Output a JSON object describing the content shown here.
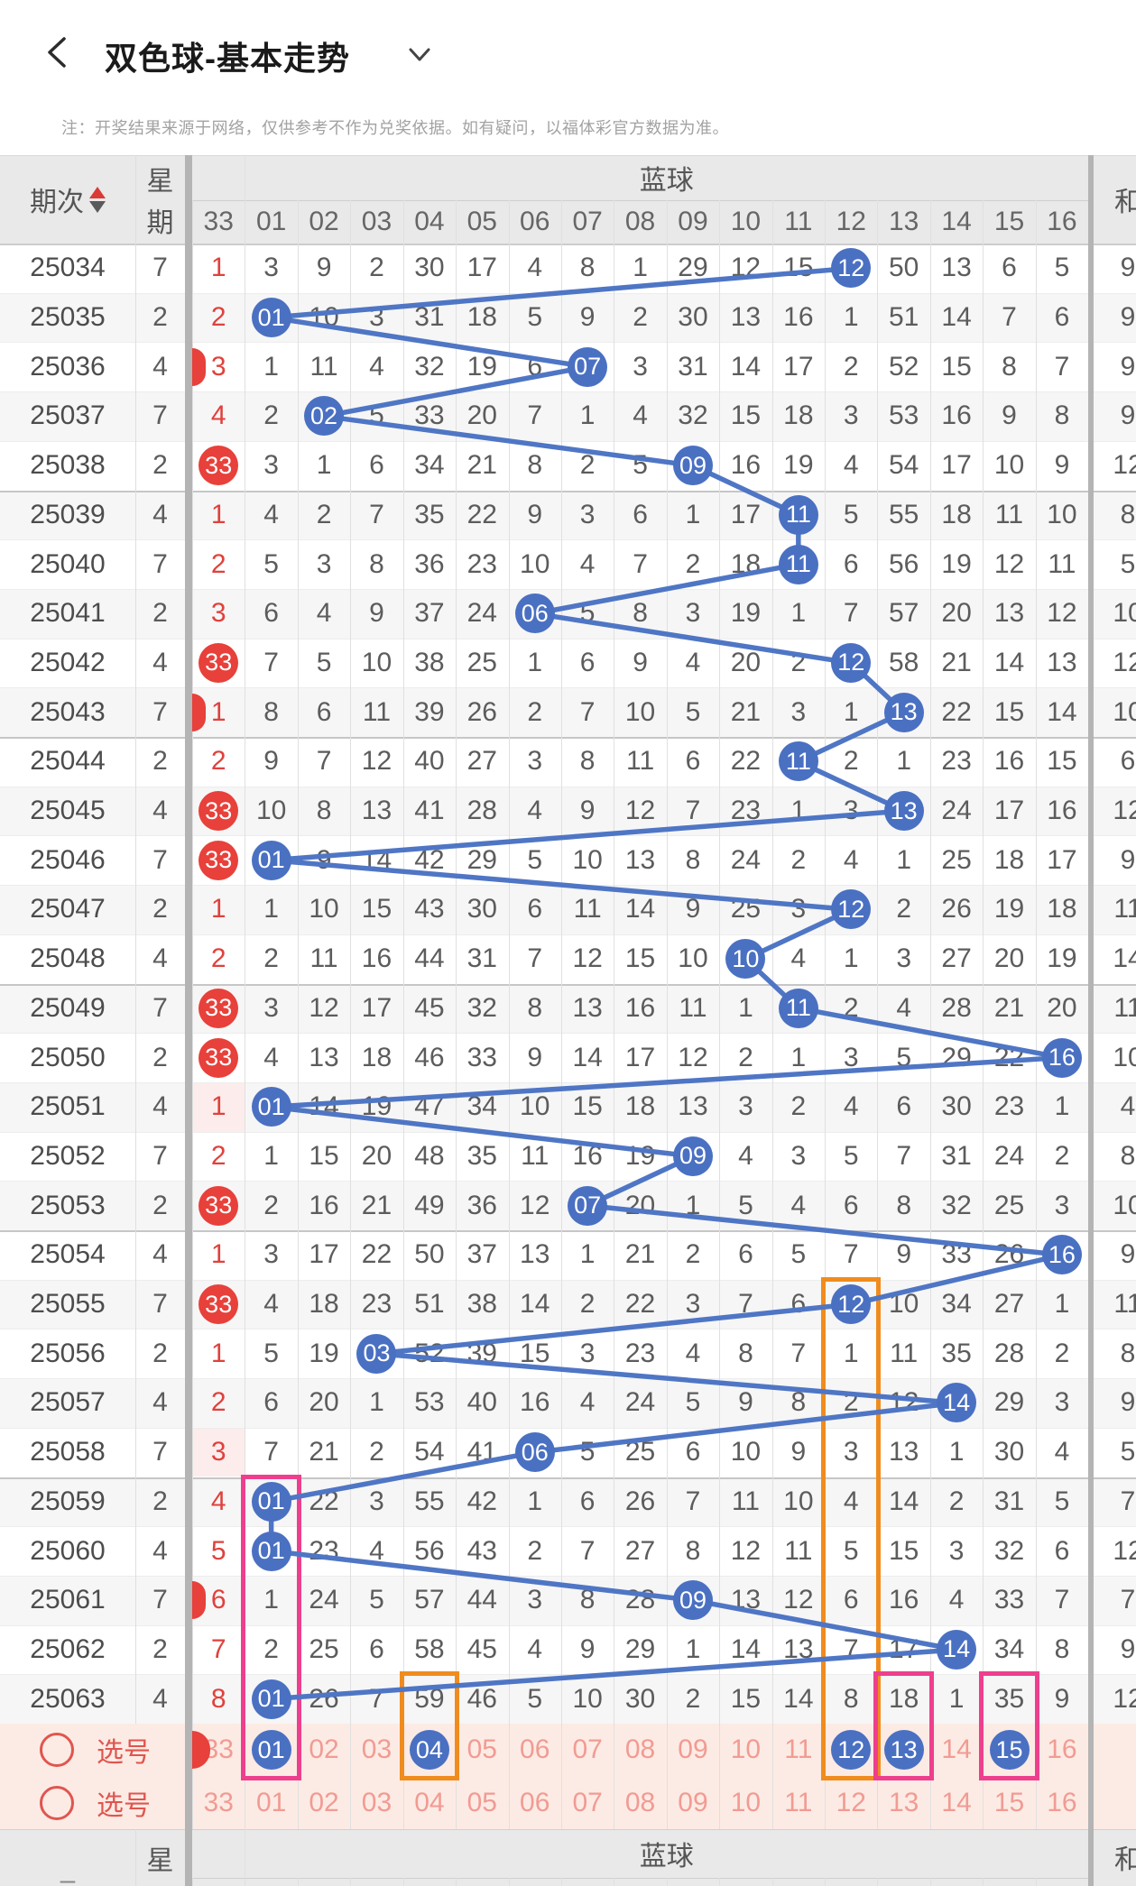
{
  "app_bar": {
    "title": "双色球-基本走势"
  },
  "notice": "注：开奖结果来源于网络，仅供参考不作为兑奖依据。如有疑问，以福体彩官方数据为准。",
  "table_header": {
    "period": "期次",
    "week_chars": [
      "星",
      "期"
    ],
    "blue_group": "蓝球",
    "sum": "和",
    "number_columns": [
      "33",
      "01",
      "02",
      "03",
      "04",
      "05",
      "06",
      "07",
      "08",
      "09",
      "10",
      "11",
      "12",
      "13",
      "14",
      "15",
      "16"
    ],
    "footer_dash": "–"
  },
  "rows": [
    {
      "period": "25034",
      "week": "7",
      "red33": "1",
      "red33_drawn": false,
      "red33_tint": false,
      "red_peek": false,
      "cells": [
        "3",
        "9",
        "2",
        "30",
        "17",
        "4",
        "8",
        "1",
        "29",
        "12",
        "15",
        "12",
        "50",
        "13",
        "6",
        "5"
      ],
      "drawn_blue": 12,
      "sum": "9"
    },
    {
      "period": "25035",
      "week": "2",
      "red33": "2",
      "red33_drawn": false,
      "red33_tint": false,
      "red_peek": false,
      "cells": [
        "01",
        "10",
        "3",
        "31",
        "18",
        "5",
        "9",
        "2",
        "30",
        "13",
        "16",
        "1",
        "51",
        "14",
        "7",
        "6"
      ],
      "drawn_blue": 1,
      "sum": "9"
    },
    {
      "period": "25036",
      "week": "4",
      "red33": "3",
      "red33_drawn": false,
      "red33_tint": false,
      "red_peek": true,
      "cells": [
        "1",
        "11",
        "4",
        "32",
        "19",
        "6",
        "07",
        "3",
        "31",
        "14",
        "17",
        "2",
        "52",
        "15",
        "8",
        "7"
      ],
      "drawn_blue": 7,
      "sum": "9"
    },
    {
      "period": "25037",
      "week": "7",
      "red33": "4",
      "red33_drawn": false,
      "red33_tint": false,
      "red_peek": false,
      "cells": [
        "2",
        "02",
        "5",
        "33",
        "20",
        "7",
        "1",
        "4",
        "32",
        "15",
        "18",
        "3",
        "53",
        "16",
        "9",
        "8"
      ],
      "drawn_blue": 2,
      "sum": "9"
    },
    {
      "period": "25038",
      "week": "2",
      "red33": "33",
      "red33_drawn": true,
      "red33_tint": false,
      "red_peek": false,
      "cells": [
        "3",
        "1",
        "6",
        "34",
        "21",
        "8",
        "2",
        "5",
        "09",
        "16",
        "19",
        "4",
        "54",
        "17",
        "10",
        "9"
      ],
      "drawn_blue": 9,
      "sum": "12"
    },
    {
      "period": "25039",
      "week": "4",
      "red33": "1",
      "red33_drawn": false,
      "red33_tint": false,
      "red_peek": false,
      "cells": [
        "4",
        "2",
        "7",
        "35",
        "22",
        "9",
        "3",
        "6",
        "1",
        "17",
        "11",
        "5",
        "55",
        "18",
        "11",
        "10"
      ],
      "drawn_blue": 11,
      "sum": "8"
    },
    {
      "period": "25040",
      "week": "7",
      "red33": "2",
      "red33_drawn": false,
      "red33_tint": false,
      "red_peek": false,
      "cells": [
        "5",
        "3",
        "8",
        "36",
        "23",
        "10",
        "4",
        "7",
        "2",
        "18",
        "11",
        "6",
        "56",
        "19",
        "12",
        "11"
      ],
      "drawn_blue": 11,
      "sum": "5"
    },
    {
      "period": "25041",
      "week": "2",
      "red33": "3",
      "red33_drawn": false,
      "red33_tint": false,
      "red_peek": false,
      "cells": [
        "6",
        "4",
        "9",
        "37",
        "24",
        "06",
        "5",
        "8",
        "3",
        "19",
        "1",
        "7",
        "57",
        "20",
        "13",
        "12"
      ],
      "drawn_blue": 6,
      "sum": "10"
    },
    {
      "period": "25042",
      "week": "4",
      "red33": "33",
      "red33_drawn": true,
      "red33_tint": false,
      "red_peek": false,
      "cells": [
        "7",
        "5",
        "10",
        "38",
        "25",
        "1",
        "6",
        "9",
        "4",
        "20",
        "2",
        "12",
        "58",
        "21",
        "14",
        "13"
      ],
      "drawn_blue": 12,
      "sum": "12"
    },
    {
      "period": "25043",
      "week": "7",
      "red33": "1",
      "red33_drawn": false,
      "red33_tint": false,
      "red_peek": true,
      "cells": [
        "8",
        "6",
        "11",
        "39",
        "26",
        "2",
        "7",
        "10",
        "5",
        "21",
        "3",
        "1",
        "13",
        "22",
        "15",
        "14"
      ],
      "drawn_blue": 13,
      "sum": "10"
    },
    {
      "period": "25044",
      "week": "2",
      "red33": "2",
      "red33_drawn": false,
      "red33_tint": false,
      "red_peek": false,
      "cells": [
        "9",
        "7",
        "12",
        "40",
        "27",
        "3",
        "8",
        "11",
        "6",
        "22",
        "11",
        "2",
        "1",
        "23",
        "16",
        "15"
      ],
      "drawn_blue": 11,
      "sum": "6"
    },
    {
      "period": "25045",
      "week": "4",
      "red33": "33",
      "red33_drawn": true,
      "red33_tint": false,
      "red_peek": false,
      "cells": [
        "10",
        "8",
        "13",
        "41",
        "28",
        "4",
        "9",
        "12",
        "7",
        "23",
        "1",
        "3",
        "13",
        "24",
        "17",
        "16"
      ],
      "drawn_blue": 13,
      "sum": "12"
    },
    {
      "period": "25046",
      "week": "7",
      "red33": "33",
      "red33_drawn": true,
      "red33_tint": false,
      "red_peek": false,
      "cells": [
        "01",
        "9",
        "14",
        "42",
        "29",
        "5",
        "10",
        "13",
        "8",
        "24",
        "2",
        "4",
        "1",
        "25",
        "18",
        "17"
      ],
      "drawn_blue": 1,
      "sum": "9"
    },
    {
      "period": "25047",
      "week": "2",
      "red33": "1",
      "red33_drawn": false,
      "red33_tint": false,
      "red_peek": false,
      "cells": [
        "1",
        "10",
        "15",
        "43",
        "30",
        "6",
        "11",
        "14",
        "9",
        "25",
        "3",
        "12",
        "2",
        "26",
        "19",
        "18"
      ],
      "drawn_blue": 12,
      "sum": "11"
    },
    {
      "period": "25048",
      "week": "4",
      "red33": "2",
      "red33_drawn": false,
      "red33_tint": false,
      "red_peek": false,
      "cells": [
        "2",
        "11",
        "16",
        "44",
        "31",
        "7",
        "12",
        "15",
        "10",
        "10",
        "4",
        "1",
        "3",
        "27",
        "20",
        "19"
      ],
      "drawn_blue": 10,
      "sum": "14"
    },
    {
      "period": "25049",
      "week": "7",
      "red33": "33",
      "red33_drawn": true,
      "red33_tint": false,
      "red_peek": false,
      "cells": [
        "3",
        "12",
        "17",
        "45",
        "32",
        "8",
        "13",
        "16",
        "11",
        "1",
        "11",
        "2",
        "4",
        "28",
        "21",
        "20"
      ],
      "drawn_blue": 11,
      "sum": "11"
    },
    {
      "period": "25050",
      "week": "2",
      "red33": "33",
      "red33_drawn": true,
      "red33_tint": false,
      "red_peek": false,
      "cells": [
        "4",
        "13",
        "18",
        "46",
        "33",
        "9",
        "14",
        "17",
        "12",
        "2",
        "1",
        "3",
        "5",
        "29",
        "22",
        "16"
      ],
      "drawn_blue": 16,
      "sum": "10"
    },
    {
      "period": "25051",
      "week": "4",
      "red33": "1",
      "red33_drawn": false,
      "red33_tint": true,
      "red_peek": false,
      "cells": [
        "01",
        "14",
        "19",
        "47",
        "34",
        "10",
        "15",
        "18",
        "13",
        "3",
        "2",
        "4",
        "6",
        "30",
        "23",
        "1"
      ],
      "drawn_blue": 1,
      "sum": "4"
    },
    {
      "period": "25052",
      "week": "7",
      "red33": "2",
      "red33_drawn": false,
      "red33_tint": false,
      "red_peek": false,
      "cells": [
        "1",
        "15",
        "20",
        "48",
        "35",
        "11",
        "16",
        "19",
        "09",
        "4",
        "3",
        "5",
        "7",
        "31",
        "24",
        "2"
      ],
      "drawn_blue": 9,
      "sum": "8"
    },
    {
      "period": "25053",
      "week": "2",
      "red33": "33",
      "red33_drawn": true,
      "red33_tint": false,
      "red_peek": false,
      "cells": [
        "2",
        "16",
        "21",
        "49",
        "36",
        "12",
        "07",
        "20",
        "1",
        "5",
        "4",
        "6",
        "8",
        "32",
        "25",
        "3"
      ],
      "drawn_blue": 7,
      "sum": "10"
    },
    {
      "period": "25054",
      "week": "4",
      "red33": "1",
      "red33_drawn": false,
      "red33_tint": false,
      "red_peek": false,
      "cells": [
        "3",
        "17",
        "22",
        "50",
        "37",
        "13",
        "1",
        "21",
        "2",
        "6",
        "5",
        "7",
        "9",
        "33",
        "26",
        "16"
      ],
      "drawn_blue": 16,
      "sum": "9"
    },
    {
      "period": "25055",
      "week": "7",
      "red33": "33",
      "red33_drawn": true,
      "red33_tint": false,
      "red_peek": false,
      "cells": [
        "4",
        "18",
        "23",
        "51",
        "38",
        "14",
        "2",
        "22",
        "3",
        "7",
        "6",
        "12",
        "10",
        "34",
        "27",
        "1"
      ],
      "drawn_blue": 12,
      "sum": "11"
    },
    {
      "period": "25056",
      "week": "2",
      "red33": "1",
      "red33_drawn": false,
      "red33_tint": false,
      "red_peek": false,
      "cells": [
        "5",
        "19",
        "03",
        "52",
        "39",
        "15",
        "3",
        "23",
        "4",
        "8",
        "7",
        "1",
        "11",
        "35",
        "28",
        "2"
      ],
      "drawn_blue": 3,
      "sum": "8"
    },
    {
      "period": "25057",
      "week": "4",
      "red33": "2",
      "red33_drawn": false,
      "red33_tint": false,
      "red_peek": false,
      "cells": [
        "6",
        "20",
        "1",
        "53",
        "40",
        "16",
        "4",
        "24",
        "5",
        "9",
        "8",
        "2",
        "12",
        "14",
        "29",
        "3"
      ],
      "drawn_blue": 14,
      "sum": "9"
    },
    {
      "period": "25058",
      "week": "7",
      "red33": "3",
      "red33_drawn": false,
      "red33_tint": true,
      "red_peek": false,
      "cells": [
        "7",
        "21",
        "2",
        "54",
        "41",
        "06",
        "5",
        "25",
        "6",
        "10",
        "9",
        "3",
        "13",
        "1",
        "30",
        "4"
      ],
      "drawn_blue": 6,
      "sum": "5"
    },
    {
      "period": "25059",
      "week": "2",
      "red33": "4",
      "red33_drawn": false,
      "red33_tint": false,
      "red_peek": false,
      "cells": [
        "01",
        "22",
        "3",
        "55",
        "42",
        "1",
        "6",
        "26",
        "7",
        "11",
        "10",
        "4",
        "14",
        "2",
        "31",
        "5"
      ],
      "drawn_blue": 1,
      "sum": "7"
    },
    {
      "period": "25060",
      "week": "4",
      "red33": "5",
      "red33_drawn": false,
      "red33_tint": false,
      "red_peek": false,
      "cells": [
        "01",
        "23",
        "4",
        "56",
        "43",
        "2",
        "7",
        "27",
        "8",
        "12",
        "11",
        "5",
        "15",
        "3",
        "32",
        "6"
      ],
      "drawn_blue": 1,
      "sum": "12"
    },
    {
      "period": "25061",
      "week": "7",
      "red33": "6",
      "red33_drawn": false,
      "red33_tint": false,
      "red_peek": true,
      "cells": [
        "1",
        "24",
        "5",
        "57",
        "44",
        "3",
        "8",
        "28",
        "09",
        "13",
        "12",
        "6",
        "16",
        "4",
        "33",
        "7"
      ],
      "drawn_blue": 9,
      "sum": "7"
    },
    {
      "period": "25062",
      "week": "2",
      "red33": "7",
      "red33_drawn": false,
      "red33_tint": false,
      "red_peek": false,
      "cells": [
        "2",
        "25",
        "6",
        "58",
        "45",
        "4",
        "9",
        "29",
        "1",
        "14",
        "13",
        "7",
        "17",
        "14",
        "34",
        "8"
      ],
      "drawn_blue": 14,
      "sum": "9"
    },
    {
      "period": "25063",
      "week": "4",
      "red33": "8",
      "red33_drawn": false,
      "red33_tint": false,
      "red_peek": false,
      "cells": [
        "01",
        "26",
        "7",
        "59",
        "46",
        "5",
        "10",
        "30",
        "2",
        "15",
        "14",
        "8",
        "18",
        "1",
        "35",
        "9"
      ],
      "drawn_blue": 1,
      "sum": "12"
    }
  ],
  "pick_rows": [
    {
      "label": "选号",
      "values": [
        "33",
        "01",
        "02",
        "03",
        "04",
        "05",
        "06",
        "07",
        "08",
        "09",
        "10",
        "11",
        "12",
        "13",
        "14",
        "15",
        "16"
      ],
      "selected": [
        1,
        4,
        12,
        13,
        15
      ],
      "red_peek": true
    },
    {
      "label": "选号",
      "values": [
        "33",
        "01",
        "02",
        "03",
        "04",
        "05",
        "06",
        "07",
        "08",
        "09",
        "10",
        "11",
        "12",
        "13",
        "14",
        "15",
        "16"
      ],
      "selected": [],
      "red_peek": false
    }
  ],
  "highlight_boxes": [
    {
      "column": 1,
      "color": "pink",
      "top_row": 25
    },
    {
      "column": 4,
      "color": "orange",
      "top_row": 29
    },
    {
      "column": 12,
      "color": "orange",
      "top_row": 21
    },
    {
      "column": 13,
      "color": "pink",
      "top_row": 29
    },
    {
      "column": 15,
      "color": "pink",
      "top_row": 29
    }
  ],
  "colors": {
    "accent_blue": "#4a70c2",
    "line_blue": "#4f76c5",
    "red_ball": "#e8403a",
    "red_text": "#e0413c",
    "orange_box": "#f08c1e",
    "pink_box": "#ee3f8e",
    "pick_bg": "#fcebe4",
    "pick_text": "#f19b93",
    "pick_label": "#e0554f",
    "tint_cell": "#fdecec",
    "header_bg": "#e9e9e9",
    "alt_row": "#f6f6f6",
    "grid": "#e0e0e0",
    "group_line": "#c6c6c6",
    "band": "#b4b4b4",
    "cell_text": "#5c5c5c",
    "sort_up": "#d93a36",
    "sort_down": "#5a5a5a"
  }
}
